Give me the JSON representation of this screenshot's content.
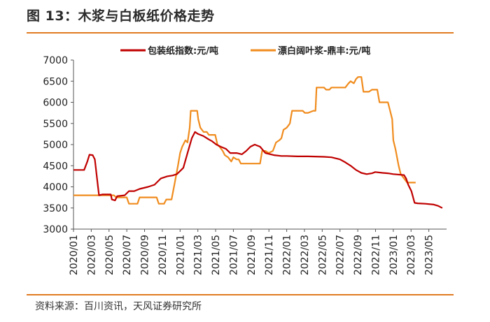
{
  "title": "图 13：木浆与白板纸价格走势",
  "source": "资料来源：百川资讯，天风证券研究所",
  "colors": {
    "accent": "#e07a22",
    "series1": "#c00000",
    "series2": "#f08c1e"
  },
  "chart_data": {
    "type": "line",
    "title": "木浆与白板纸价格走势",
    "xlabel": "",
    "ylabel": "",
    "ylim": [
      3000,
      7000
    ],
    "yticks": [
      3000,
      3500,
      4000,
      4500,
      5000,
      5500,
      6000,
      6500,
      7000
    ],
    "xlim": [
      2020.0,
      2023.5
    ],
    "xtick_labels": [
      "2020/01",
      "2020/03",
      "2020/05",
      "2020/07",
      "2020/09",
      "2020/11",
      "2021/01",
      "2021/03",
      "2021/05",
      "2021/07",
      "2021/09",
      "2021/11",
      "2022/01",
      "2022/03",
      "2022/05",
      "2022/07",
      "2022/09",
      "2022/11",
      "2023/01",
      "2023/03",
      "2023/05"
    ],
    "legend": "top",
    "series": [
      {
        "name": "包装纸指数:元/吨",
        "points": [
          [
            2020.0,
            4400
          ],
          [
            2020.1,
            4400
          ],
          [
            2020.13,
            4600
          ],
          [
            2020.15,
            4760
          ],
          [
            2020.18,
            4750
          ],
          [
            2020.2,
            4650
          ],
          [
            2020.23,
            4000
          ],
          [
            2020.24,
            3800
          ],
          [
            2020.27,
            3820
          ],
          [
            2020.35,
            3820
          ],
          [
            2020.36,
            3700
          ],
          [
            2020.39,
            3680
          ],
          [
            2020.41,
            3780
          ],
          [
            2020.48,
            3800
          ],
          [
            2020.52,
            3900
          ],
          [
            2020.57,
            3900
          ],
          [
            2020.62,
            3950
          ],
          [
            2020.7,
            4000
          ],
          [
            2020.76,
            4050
          ],
          [
            2020.82,
            4200
          ],
          [
            2020.88,
            4250
          ],
          [
            2020.93,
            4270
          ],
          [
            2020.97,
            4300
          ],
          [
            2021.03,
            4450
          ],
          [
            2021.07,
            4800
          ],
          [
            2021.11,
            5150
          ],
          [
            2021.14,
            5300
          ],
          [
            2021.17,
            5250
          ],
          [
            2021.22,
            5200
          ],
          [
            2021.27,
            5120
          ],
          [
            2021.3,
            5080
          ],
          [
            2021.34,
            5000
          ],
          [
            2021.38,
            4950
          ],
          [
            2021.43,
            4900
          ],
          [
            2021.47,
            4800
          ],
          [
            2021.53,
            4800
          ],
          [
            2021.58,
            4770
          ],
          [
            2021.62,
            4850
          ],
          [
            2021.66,
            4950
          ],
          [
            2021.7,
            5000
          ],
          [
            2021.75,
            4950
          ],
          [
            2021.8,
            4800
          ],
          [
            2021.88,
            4750
          ],
          [
            2021.95,
            4730
          ],
          [
            2022.0,
            4730
          ],
          [
            2022.1,
            4720
          ],
          [
            2022.2,
            4720
          ],
          [
            2022.35,
            4710
          ],
          [
            2022.42,
            4700
          ],
          [
            2022.5,
            4650
          ],
          [
            2022.55,
            4580
          ],
          [
            2022.6,
            4500
          ],
          [
            2022.65,
            4400
          ],
          [
            2022.7,
            4330
          ],
          [
            2022.75,
            4300
          ],
          [
            2022.8,
            4320
          ],
          [
            2022.83,
            4350
          ],
          [
            2022.9,
            4330
          ],
          [
            2022.95,
            4320
          ],
          [
            2023.0,
            4300
          ],
          [
            2023.1,
            4280
          ],
          [
            2023.12,
            4200
          ],
          [
            2023.14,
            4050
          ],
          [
            2023.17,
            3900
          ],
          [
            2023.2,
            3620
          ],
          [
            2023.23,
            3610
          ],
          [
            2023.3,
            3600
          ],
          [
            2023.38,
            3580
          ],
          [
            2023.42,
            3550
          ],
          [
            2023.46,
            3500
          ]
        ]
      },
      {
        "name": "漂白阔叶浆-鼎丰:元/吨",
        "points": [
          [
            2020.0,
            3800
          ],
          [
            2020.08,
            3800
          ],
          [
            2020.2,
            3800
          ],
          [
            2020.38,
            3800
          ],
          [
            2020.4,
            3750
          ],
          [
            2020.5,
            3750
          ],
          [
            2020.52,
            3600
          ],
          [
            2020.6,
            3600
          ],
          [
            2020.62,
            3750
          ],
          [
            2020.7,
            3750
          ],
          [
            2020.78,
            3750
          ],
          [
            2020.8,
            3600
          ],
          [
            2020.85,
            3600
          ],
          [
            2020.87,
            3700
          ],
          [
            2020.92,
            3700
          ],
          [
            2020.95,
            4100
          ],
          [
            2020.98,
            4500
          ],
          [
            2021.0,
            4800
          ],
          [
            2021.02,
            4950
          ],
          [
            2021.05,
            5100
          ],
          [
            2021.07,
            5050
          ],
          [
            2021.09,
            5400
          ],
          [
            2021.1,
            5800
          ],
          [
            2021.16,
            5800
          ],
          [
            2021.17,
            5600
          ],
          [
            2021.19,
            5400
          ],
          [
            2021.22,
            5300
          ],
          [
            2021.25,
            5300
          ],
          [
            2021.27,
            5230
          ],
          [
            2021.33,
            5230
          ],
          [
            2021.35,
            5000
          ],
          [
            2021.37,
            4950
          ],
          [
            2021.4,
            4850
          ],
          [
            2021.42,
            4750
          ],
          [
            2021.45,
            4700
          ],
          [
            2021.48,
            4600
          ],
          [
            2021.5,
            4700
          ],
          [
            2021.53,
            4650
          ],
          [
            2021.55,
            4650
          ],
          [
            2021.57,
            4550
          ],
          [
            2021.63,
            4550
          ],
          [
            2021.67,
            4550
          ],
          [
            2021.73,
            4550
          ],
          [
            2021.75,
            4550
          ],
          [
            2021.77,
            4850
          ],
          [
            2021.8,
            4850
          ],
          [
            2021.83,
            4800
          ],
          [
            2021.87,
            4850
          ],
          [
            2021.9,
            5050
          ],
          [
            2021.93,
            5100
          ],
          [
            2021.95,
            5150
          ],
          [
            2021.97,
            5350
          ],
          [
            2022.0,
            5400
          ],
          [
            2022.03,
            5500
          ],
          [
            2022.05,
            5800
          ],
          [
            2022.15,
            5800
          ],
          [
            2022.17,
            5750
          ],
          [
            2022.2,
            5750
          ],
          [
            2022.25,
            5800
          ],
          [
            2022.27,
            5800
          ],
          [
            2022.28,
            6350
          ],
          [
            2022.35,
            6350
          ],
          [
            2022.37,
            6300
          ],
          [
            2022.4,
            6300
          ],
          [
            2022.42,
            6350
          ],
          [
            2022.5,
            6350
          ],
          [
            2022.55,
            6350
          ],
          [
            2022.58,
            6450
          ],
          [
            2022.6,
            6500
          ],
          [
            2022.63,
            6450
          ],
          [
            2022.65,
            6550
          ],
          [
            2022.67,
            6600
          ],
          [
            2022.7,
            6600
          ],
          [
            2022.72,
            6250
          ],
          [
            2022.77,
            6250
          ],
          [
            2022.8,
            6300
          ],
          [
            2022.85,
            6300
          ],
          [
            2022.87,
            6000
          ],
          [
            2022.92,
            6000
          ],
          [
            2022.95,
            6000
          ],
          [
            2022.97,
            5800
          ],
          [
            2022.99,
            5600
          ],
          [
            2023.0,
            5100
          ],
          [
            2023.02,
            4900
          ],
          [
            2023.05,
            4500
          ],
          [
            2023.07,
            4300
          ],
          [
            2023.1,
            4200
          ],
          [
            2023.13,
            4100
          ],
          [
            2023.18,
            4100
          ],
          [
            2023.21,
            4100
          ]
        ]
      }
    ]
  }
}
